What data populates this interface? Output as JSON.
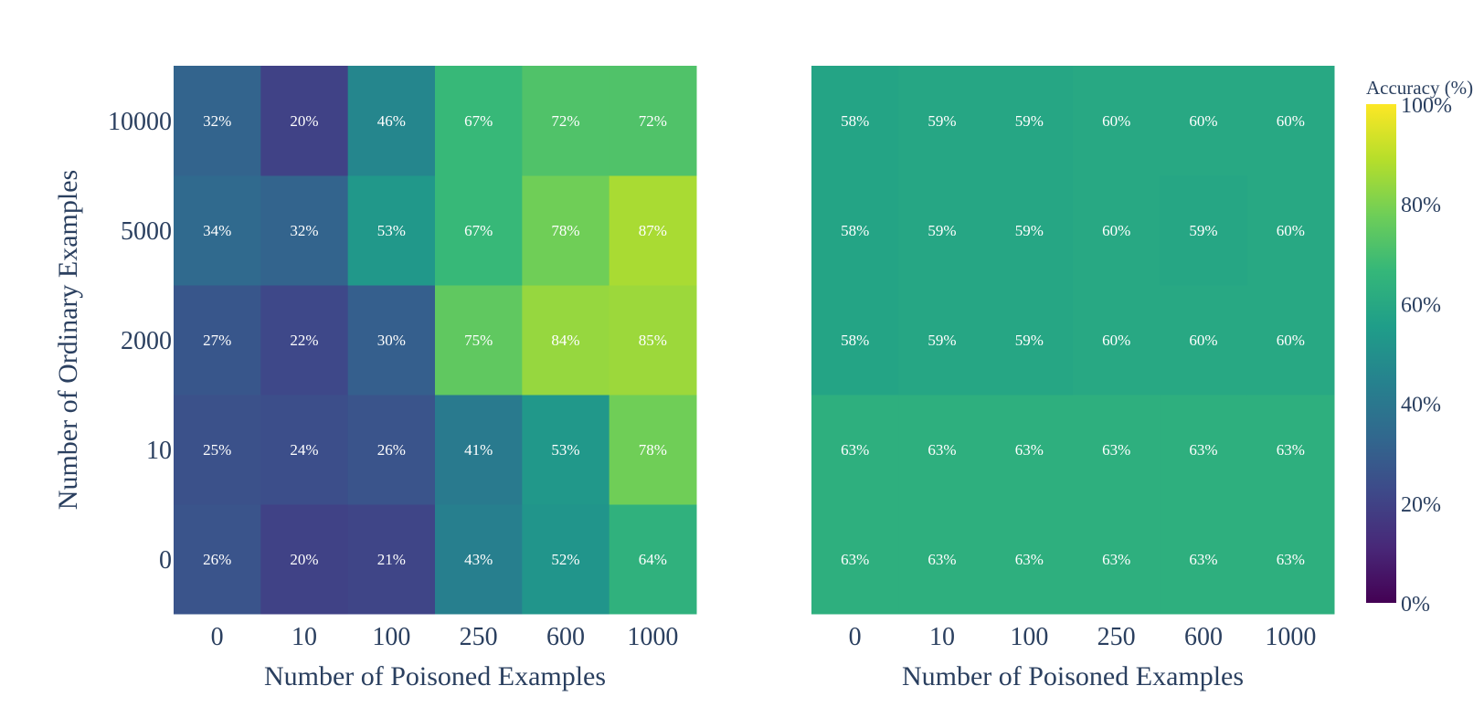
{
  "chart_data": {
    "type": "heatmap",
    "colorscale": "viridis",
    "zrange": [
      0,
      100
    ],
    "x_categories": [
      "0",
      "10",
      "100",
      "250",
      "600",
      "1000"
    ],
    "y_categories": [
      "0",
      "10",
      "2000",
      "5000",
      "10000"
    ],
    "colorbar": {
      "title": "Accuracy (%)",
      "tick_values": [
        0,
        20,
        40,
        60,
        80,
        100
      ],
      "tick_labels": [
        "0%",
        "20%",
        "40%",
        "60%",
        "80%",
        "100%"
      ]
    },
    "panels": [
      {
        "name": "left",
        "xlabel": "Number of Poisoned Examples",
        "ylabel": "Number of Ordinary Examples",
        "values": [
          [
            26,
            20,
            21,
            43,
            52,
            64
          ],
          [
            25,
            24,
            26,
            41,
            53,
            78
          ],
          [
            27,
            22,
            30,
            75,
            84,
            85
          ],
          [
            34,
            32,
            53,
            67,
            78,
            87
          ],
          [
            32,
            20,
            46,
            67,
            72,
            72
          ]
        ]
      },
      {
        "name": "right",
        "xlabel": "Number of Poisoned Examples",
        "ylabel": "",
        "values": [
          [
            63,
            63,
            63,
            63,
            63,
            63
          ],
          [
            63,
            63,
            63,
            63,
            63,
            63
          ],
          [
            58,
            59,
            59,
            60,
            60,
            60
          ],
          [
            58,
            59,
            59,
            60,
            59,
            60
          ],
          [
            58,
            59,
            59,
            60,
            60,
            60
          ]
        ]
      }
    ]
  }
}
